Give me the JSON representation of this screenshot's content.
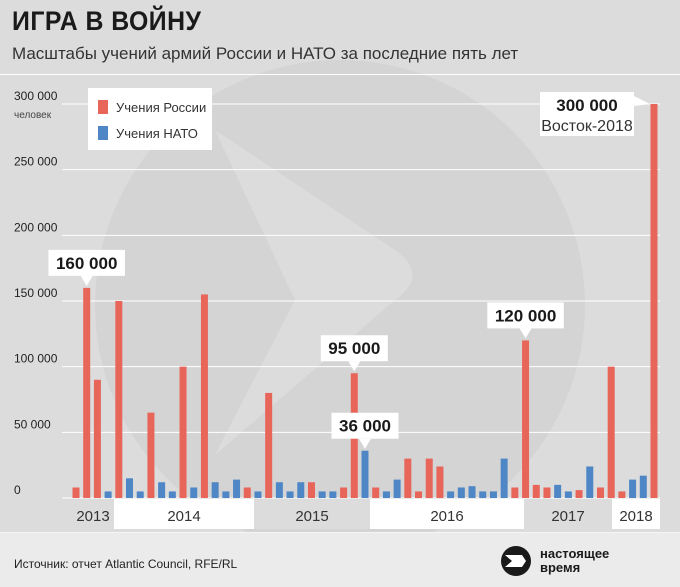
{
  "header": {
    "title": "ИГРА В ВОЙНУ",
    "subtitle": "Масштабы учений армий России и НАТО за последние пять лет"
  },
  "colors": {
    "russia": "#e8655a",
    "nato": "#4f86c6",
    "background": "#dcdcdc",
    "grid": "#ffffff"
  },
  "footer": {
    "source": "Источник: отчет Atlantic Council, RFE/RL",
    "logo_line1": "настоящее",
    "logo_line2": "время",
    "logo_icon": "play-arrow-icon"
  },
  "chart_data": {
    "type": "bar",
    "ylim": [
      0,
      300000
    ],
    "ylabel": "человек",
    "y_ticks": [
      0,
      50000,
      100000,
      150000,
      200000,
      250000,
      300000
    ],
    "y_tick_labels": [
      "0",
      "50 000",
      "100 000",
      "150 000",
      "200 000",
      "250 000",
      "300 000"
    ],
    "grid": true,
    "legend": {
      "placement": "top-left",
      "entries": [
        "Учения России",
        "Учения НАТО"
      ]
    },
    "year_labels": [
      "2013",
      "2014",
      "2015",
      "2016",
      "2017",
      "2018"
    ],
    "bars": [
      {
        "series": "russia",
        "value": 8000
      },
      {
        "series": "russia",
        "value": 160000
      },
      {
        "series": "russia",
        "value": 90000
      },
      {
        "series": "nato",
        "value": 5000
      },
      {
        "series": "russia",
        "value": 150000
      },
      {
        "series": "nato",
        "value": 15000
      },
      {
        "series": "nato",
        "value": 5000
      },
      {
        "series": "russia",
        "value": 65000
      },
      {
        "series": "nato",
        "value": 12000
      },
      {
        "series": "nato",
        "value": 5000
      },
      {
        "series": "russia",
        "value": 100000
      },
      {
        "series": "nato",
        "value": 8000
      },
      {
        "series": "russia",
        "value": 155000
      },
      {
        "series": "nato",
        "value": 12000
      },
      {
        "series": "nato",
        "value": 5000
      },
      {
        "series": "nato",
        "value": 14000
      },
      {
        "series": "russia",
        "value": 8000
      },
      {
        "series": "nato",
        "value": 5000
      },
      {
        "series": "russia",
        "value": 80000
      },
      {
        "series": "nato",
        "value": 12000
      },
      {
        "series": "nato",
        "value": 5000
      },
      {
        "series": "nato",
        "value": 12000
      },
      {
        "series": "russia",
        "value": 12000
      },
      {
        "series": "nato",
        "value": 5000
      },
      {
        "series": "nato",
        "value": 5000
      },
      {
        "series": "russia",
        "value": 8000
      },
      {
        "series": "russia",
        "value": 95000
      },
      {
        "series": "nato",
        "value": 36000
      },
      {
        "series": "russia",
        "value": 8000
      },
      {
        "series": "nato",
        "value": 5000
      },
      {
        "series": "nato",
        "value": 14000
      },
      {
        "series": "russia",
        "value": 30000
      },
      {
        "series": "russia",
        "value": 5000
      },
      {
        "series": "russia",
        "value": 30000
      },
      {
        "series": "russia",
        "value": 24000
      },
      {
        "series": "nato",
        "value": 5000
      },
      {
        "series": "nato",
        "value": 8000
      },
      {
        "series": "nato",
        "value": 9000
      },
      {
        "series": "nato",
        "value": 5000
      },
      {
        "series": "nato",
        "value": 5000
      },
      {
        "series": "nato",
        "value": 30000
      },
      {
        "series": "russia",
        "value": 8000
      },
      {
        "series": "russia",
        "value": 120000
      },
      {
        "series": "russia",
        "value": 10000
      },
      {
        "series": "russia",
        "value": 8000
      },
      {
        "series": "nato",
        "value": 10000
      },
      {
        "series": "nato",
        "value": 5000
      },
      {
        "series": "russia",
        "value": 6000
      },
      {
        "series": "nato",
        "value": 24000
      },
      {
        "series": "russia",
        "value": 8000
      },
      {
        "series": "russia",
        "value": 100000
      },
      {
        "series": "russia",
        "value": 5000
      },
      {
        "series": "nato",
        "value": 14000
      },
      {
        "series": "nato",
        "value": 17000
      },
      {
        "series": "russia",
        "value": 300000
      }
    ],
    "annotations": [
      {
        "bar": 1,
        "text": "160 000"
      },
      {
        "bar": 26,
        "text": "95 000"
      },
      {
        "bar": 27,
        "text": "36 000"
      },
      {
        "bar": 42,
        "text": "120 000"
      },
      {
        "bar": 54,
        "text": "300 000",
        "subtext": "Восток-2018"
      }
    ]
  }
}
